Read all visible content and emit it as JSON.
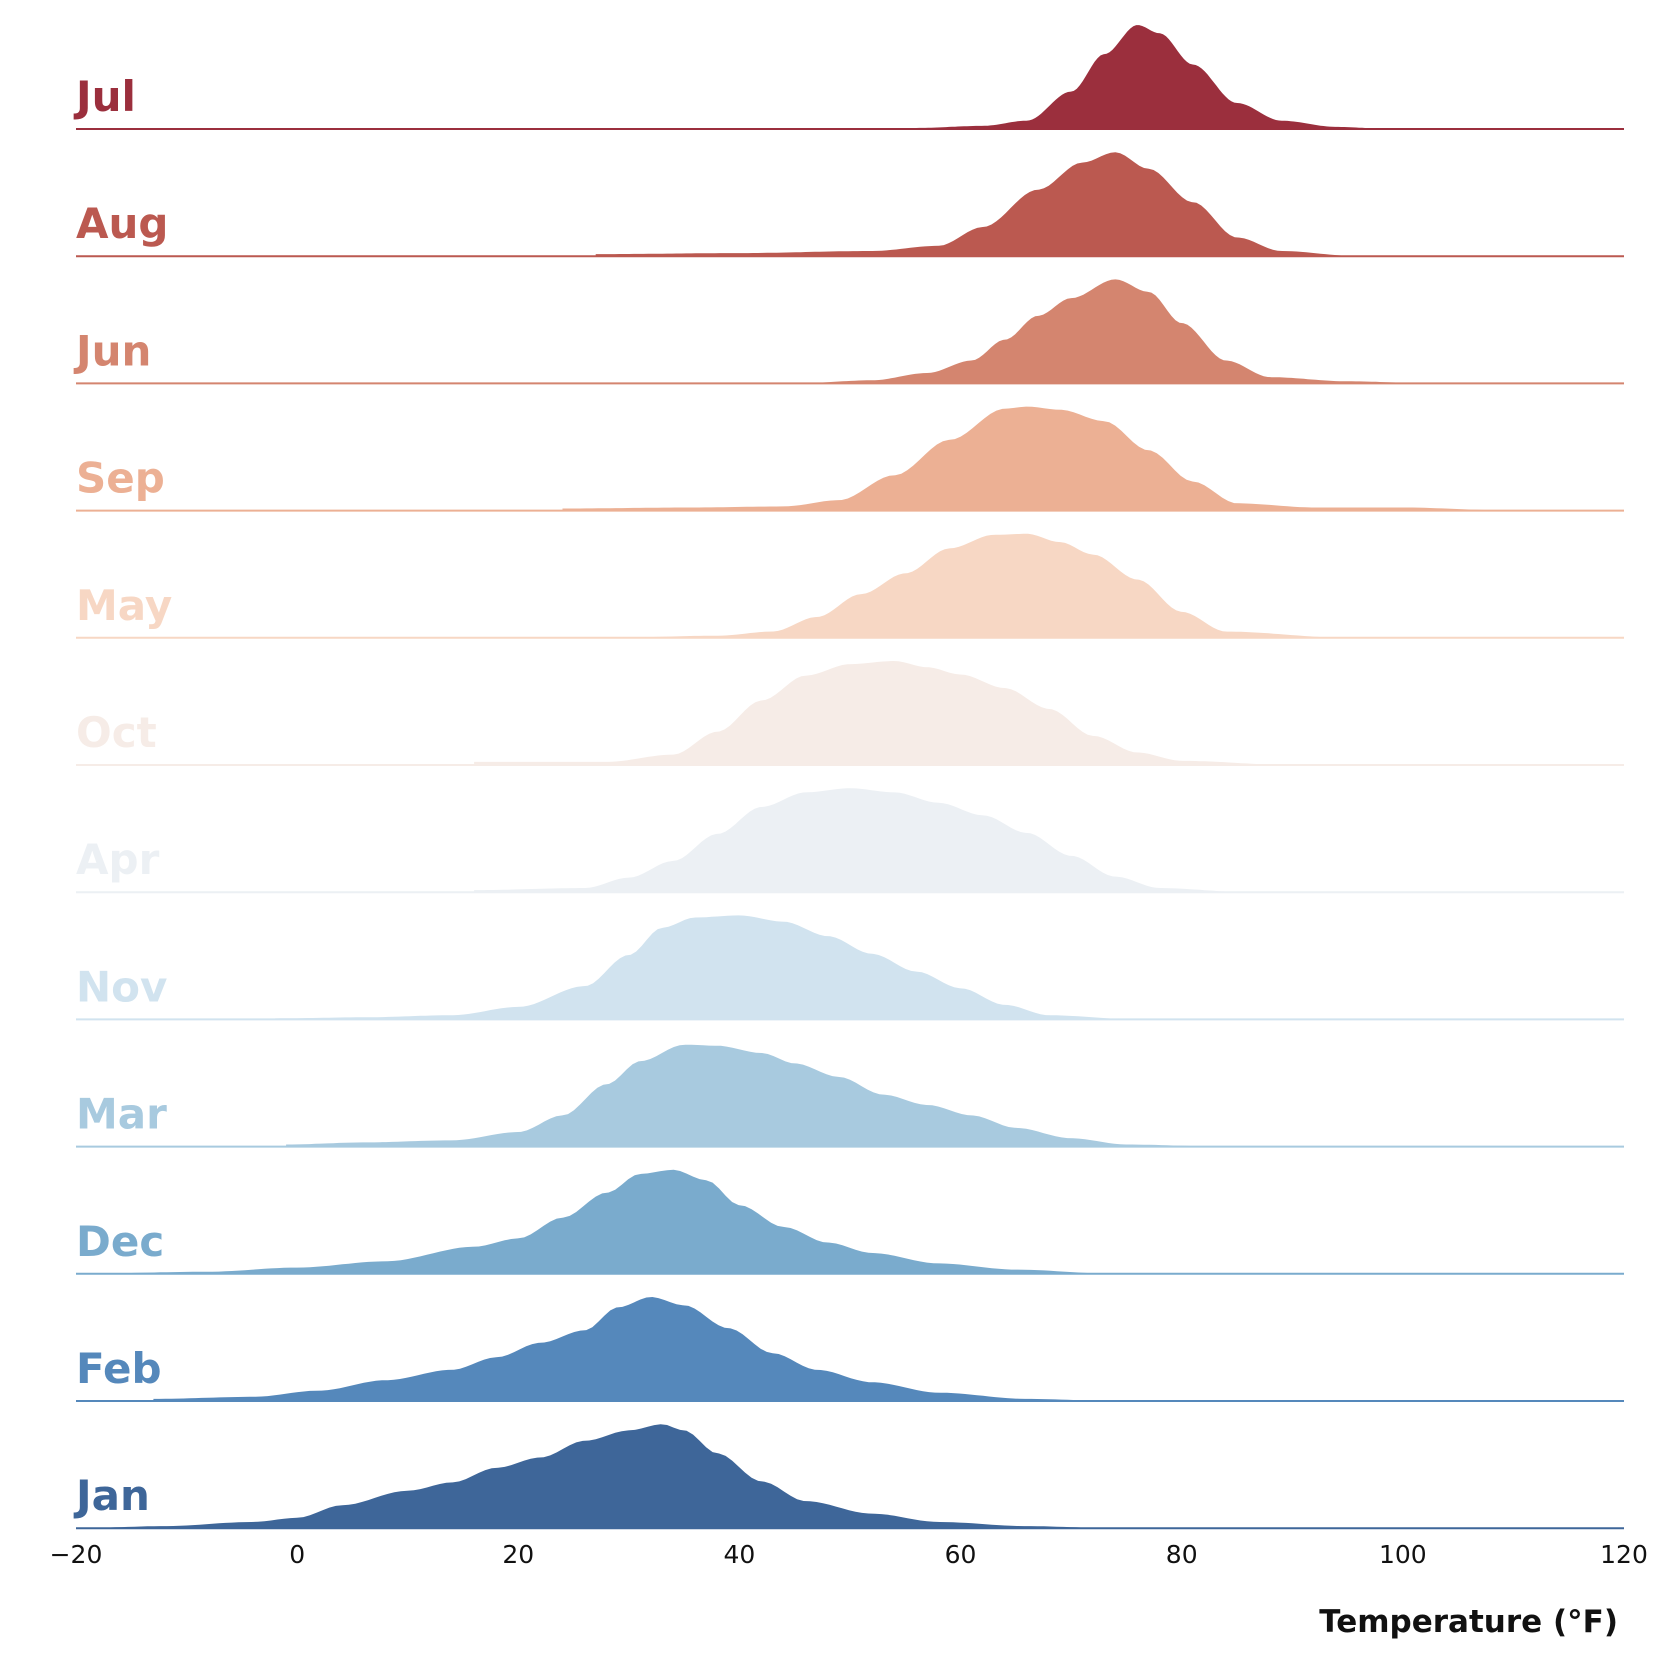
{
  "chart_data": {
    "type": "ridgeline",
    "title": "",
    "xlabel": "Temperature (°F)",
    "ylabel": "",
    "xlim": [
      -20,
      120
    ],
    "xticks": [
      -20,
      0,
      20,
      40,
      60,
      80,
      100,
      120
    ],
    "xtick_labels": [
      "−20",
      "0",
      "20",
      "40",
      "60",
      "80",
      "100",
      "120"
    ],
    "grid": false,
    "series": [
      {
        "name": "Jul",
        "color": "#9b2f3d",
        "range": [
          56,
          99
        ],
        "density": [
          [
            56,
            0.01
          ],
          [
            62,
            0.03
          ],
          [
            66,
            0.08
          ],
          [
            70,
            0.36
          ],
          [
            73,
            0.72
          ],
          [
            76,
            1.0
          ],
          [
            78,
            0.92
          ],
          [
            81,
            0.62
          ],
          [
            85,
            0.25
          ],
          [
            89,
            0.08
          ],
          [
            94,
            0.02
          ],
          [
            99,
            0.0
          ]
        ]
      },
      {
        "name": "Aug",
        "color": "#bb5950",
        "range": [
          27,
          96
        ],
        "density": [
          [
            27,
            0.02
          ],
          [
            40,
            0.03
          ],
          [
            52,
            0.05
          ],
          [
            58,
            0.1
          ],
          [
            62,
            0.28
          ],
          [
            67,
            0.64
          ],
          [
            71,
            0.9
          ],
          [
            74,
            1.0
          ],
          [
            77,
            0.84
          ],
          [
            81,
            0.52
          ],
          [
            85,
            0.18
          ],
          [
            89,
            0.05
          ],
          [
            96,
            0.0
          ]
        ]
      },
      {
        "name": "Jun",
        "color": "#d4856f",
        "range": [
          45,
          103
        ],
        "density": [
          [
            45,
            0.0
          ],
          [
            52,
            0.03
          ],
          [
            57,
            0.1
          ],
          [
            61,
            0.22
          ],
          [
            64,
            0.42
          ],
          [
            67,
            0.65
          ],
          [
            70,
            0.82
          ],
          [
            74,
            1.0
          ],
          [
            77,
            0.88
          ],
          [
            80,
            0.58
          ],
          [
            84,
            0.22
          ],
          [
            88,
            0.06
          ],
          [
            95,
            0.02
          ],
          [
            103,
            0.0
          ]
        ]
      },
      {
        "name": "Sep",
        "color": "#ecb094",
        "range": [
          24,
          110
        ],
        "density": [
          [
            24,
            0.02
          ],
          [
            36,
            0.03
          ],
          [
            44,
            0.04
          ],
          [
            49,
            0.1
          ],
          [
            54,
            0.34
          ],
          [
            59,
            0.68
          ],
          [
            64,
            0.98
          ],
          [
            66,
            1.0
          ],
          [
            69,
            0.97
          ],
          [
            73,
            0.86
          ],
          [
            77,
            0.58
          ],
          [
            81,
            0.28
          ],
          [
            85,
            0.07
          ],
          [
            92,
            0.03
          ],
          [
            100,
            0.03
          ],
          [
            110,
            0.0
          ]
        ]
      },
      {
        "name": "May",
        "color": "#f7d7c4",
        "range": [
          28,
          95
        ],
        "density": [
          [
            28,
            0.0
          ],
          [
            38,
            0.02
          ],
          [
            43,
            0.06
          ],
          [
            47,
            0.2
          ],
          [
            51,
            0.42
          ],
          [
            55,
            0.62
          ],
          [
            59,
            0.86
          ],
          [
            63,
            0.99
          ],
          [
            66,
            1.0
          ],
          [
            69,
            0.92
          ],
          [
            72,
            0.8
          ],
          [
            76,
            0.56
          ],
          [
            80,
            0.25
          ],
          [
            84,
            0.06
          ],
          [
            95,
            0.0
          ]
        ]
      },
      {
        "name": "Oct",
        "color": "#f6ece7",
        "range": [
          16,
          90
        ],
        "density": [
          [
            16,
            0.03
          ],
          [
            28,
            0.03
          ],
          [
            34,
            0.1
          ],
          [
            38,
            0.32
          ],
          [
            42,
            0.62
          ],
          [
            46,
            0.86
          ],
          [
            50,
            0.97
          ],
          [
            54,
            1.0
          ],
          [
            57,
            0.94
          ],
          [
            60,
            0.87
          ],
          [
            64,
            0.74
          ],
          [
            68,
            0.54
          ],
          [
            72,
            0.28
          ],
          [
            76,
            0.12
          ],
          [
            80,
            0.04
          ],
          [
            90,
            0.0
          ]
        ]
      },
      {
        "name": "Apr",
        "color": "#ecf0f4",
        "range": [
          16,
          86
        ],
        "density": [
          [
            16,
            0.02
          ],
          [
            26,
            0.04
          ],
          [
            30,
            0.14
          ],
          [
            34,
            0.3
          ],
          [
            38,
            0.56
          ],
          [
            42,
            0.82
          ],
          [
            46,
            0.96
          ],
          [
            50,
            1.0
          ],
          [
            54,
            0.96
          ],
          [
            58,
            0.86
          ],
          [
            62,
            0.74
          ],
          [
            66,
            0.57
          ],
          [
            70,
            0.35
          ],
          [
            74,
            0.15
          ],
          [
            78,
            0.04
          ],
          [
            86,
            0.0
          ]
        ]
      },
      {
        "name": "Nov",
        "color": "#d1e3ef",
        "range": [
          -2,
          76
        ],
        "density": [
          [
            -2,
            0.01
          ],
          [
            6,
            0.02
          ],
          [
            14,
            0.04
          ],
          [
            20,
            0.12
          ],
          [
            26,
            0.32
          ],
          [
            30,
            0.62
          ],
          [
            33,
            0.88
          ],
          [
            36,
            0.98
          ],
          [
            40,
            1.0
          ],
          [
            44,
            0.94
          ],
          [
            48,
            0.8
          ],
          [
            52,
            0.63
          ],
          [
            56,
            0.46
          ],
          [
            60,
            0.3
          ],
          [
            64,
            0.14
          ],
          [
            68,
            0.04
          ],
          [
            76,
            0.0
          ]
        ]
      },
      {
        "name": "Mar",
        "color": "#a8cadf",
        "range": [
          -1,
          84
        ],
        "density": [
          [
            -1,
            0.02
          ],
          [
            6,
            0.04
          ],
          [
            14,
            0.06
          ],
          [
            20,
            0.14
          ],
          [
            24,
            0.3
          ],
          [
            28,
            0.6
          ],
          [
            31,
            0.82
          ],
          [
            35,
            0.98
          ],
          [
            38,
            0.97
          ],
          [
            42,
            0.9
          ],
          [
            45,
            0.8
          ],
          [
            49,
            0.67
          ],
          [
            53,
            0.5
          ],
          [
            57,
            0.4
          ],
          [
            61,
            0.3
          ],
          [
            65,
            0.18
          ],
          [
            70,
            0.08
          ],
          [
            75,
            0.02
          ],
          [
            84,
            0.0
          ]
        ]
      },
      {
        "name": "Dec",
        "color": "#7aabcd",
        "range": [
          -20,
          74
        ],
        "density": [
          [
            -20,
            0.0
          ],
          [
            -8,
            0.02
          ],
          [
            0,
            0.06
          ],
          [
            8,
            0.12
          ],
          [
            16,
            0.26
          ],
          [
            20,
            0.34
          ],
          [
            24,
            0.54
          ],
          [
            28,
            0.78
          ],
          [
            31,
            0.96
          ],
          [
            34,
            1.0
          ],
          [
            37,
            0.9
          ],
          [
            40,
            0.66
          ],
          [
            44,
            0.45
          ],
          [
            48,
            0.3
          ],
          [
            52,
            0.2
          ],
          [
            58,
            0.1
          ],
          [
            65,
            0.04
          ],
          [
            74,
            0.0
          ]
        ]
      },
      {
        "name": "Feb",
        "color": "#5588bb",
        "range": [
          -13,
          74
        ],
        "density": [
          [
            -13,
            0.02
          ],
          [
            -4,
            0.04
          ],
          [
            2,
            0.1
          ],
          [
            8,
            0.2
          ],
          [
            14,
            0.3
          ],
          [
            18,
            0.42
          ],
          [
            22,
            0.56
          ],
          [
            26,
            0.68
          ],
          [
            29,
            0.9
          ],
          [
            32,
            1.0
          ],
          [
            35,
            0.92
          ],
          [
            39,
            0.7
          ],
          [
            43,
            0.46
          ],
          [
            47,
            0.3
          ],
          [
            52,
            0.18
          ],
          [
            58,
            0.08
          ],
          [
            66,
            0.02
          ],
          [
            74,
            0.0
          ]
        ]
      },
      {
        "name": "Jan",
        "color": "#3e6699",
        "range": [
          -20,
          74
        ],
        "density": [
          [
            -20,
            0.0
          ],
          [
            -12,
            0.02
          ],
          [
            -4,
            0.06
          ],
          [
            0,
            0.1
          ],
          [
            4,
            0.22
          ],
          [
            10,
            0.36
          ],
          [
            14,
            0.44
          ],
          [
            18,
            0.58
          ],
          [
            22,
            0.68
          ],
          [
            26,
            0.84
          ],
          [
            30,
            0.94
          ],
          [
            33,
            1.0
          ],
          [
            35,
            0.94
          ],
          [
            38,
            0.72
          ],
          [
            42,
            0.45
          ],
          [
            46,
            0.26
          ],
          [
            52,
            0.14
          ],
          [
            58,
            0.06
          ],
          [
            66,
            0.02
          ],
          [
            74,
            0.0
          ]
        ]
      }
    ]
  }
}
